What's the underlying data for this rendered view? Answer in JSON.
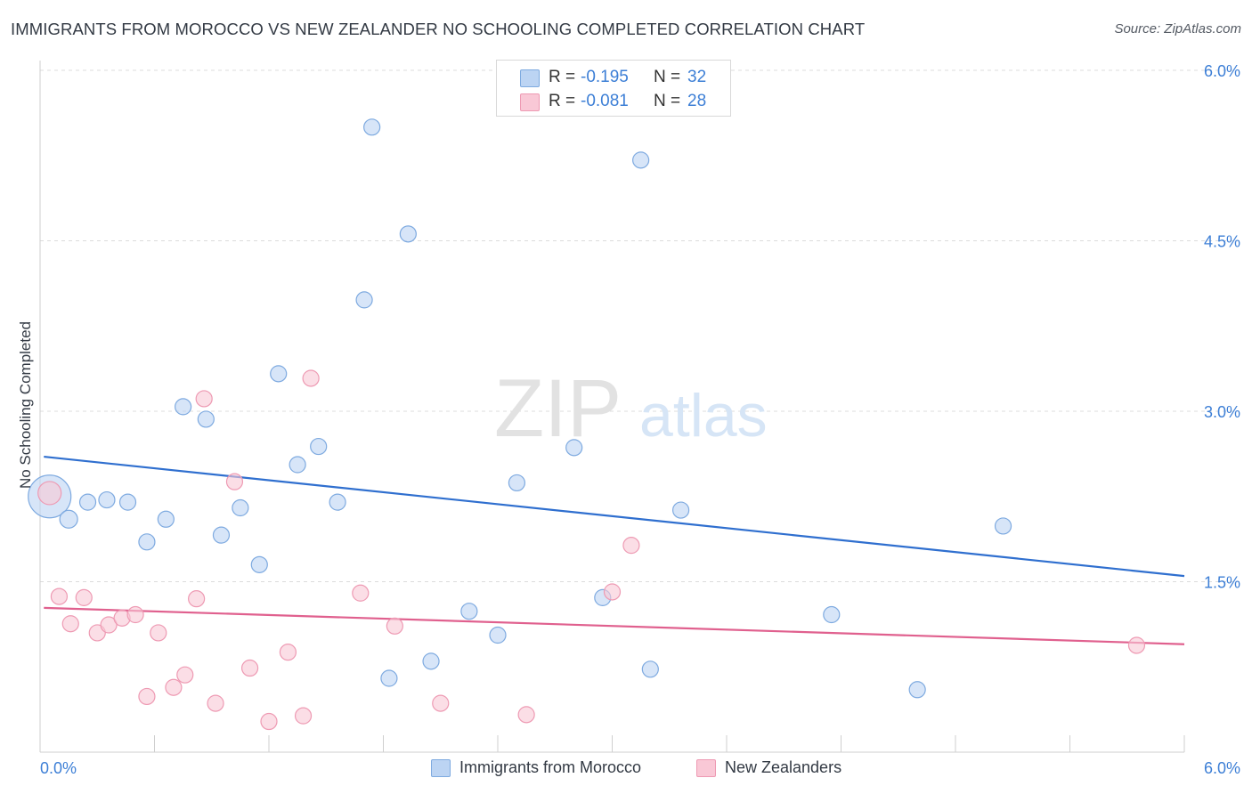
{
  "title": "IMMIGRANTS FROM MOROCCO VS NEW ZEALANDER NO SCHOOLING COMPLETED CORRELATION CHART",
  "source": "Source: ZipAtlas.com",
  "watermark": {
    "zip": "ZIP",
    "atlas": "atlas"
  },
  "legend_top": {
    "rows": [
      {
        "r_label": "R =",
        "r_value": "-0.195",
        "n_label": "N =",
        "n_value": "32"
      },
      {
        "r_label": "R =",
        "r_value": "-0.081",
        "n_label": "N =",
        "n_value": "28"
      }
    ]
  },
  "legend_bottom": {
    "items": [
      {
        "label": "Immigrants from Morocco"
      },
      {
        "label": "New Zealanders"
      }
    ]
  },
  "colors": {
    "blue_fill": "#bcd4f3",
    "blue_stroke": "#7eaae0",
    "blue_line": "#2f6fcf",
    "pink_fill": "#f9c8d6",
    "pink_stroke": "#ee9ab3",
    "pink_line": "#e0608e",
    "axis_label": "#3d7fd6",
    "grid": "#dcdcdc"
  },
  "chart_data": {
    "type": "scatter",
    "xlabel": "",
    "ylabel": "No Schooling Completed",
    "xlim": [
      0,
      6.0
    ],
    "ylim": [
      0,
      6.0
    ],
    "x_tick_labels": [
      "0.0%",
      "6.0%"
    ],
    "y_tick_values": [
      1.5,
      3.0,
      4.5,
      6.0
    ],
    "y_tick_labels": [
      "1.5%",
      "3.0%",
      "4.5%",
      "6.0%"
    ],
    "grid": true,
    "series": [
      {
        "name": "Immigrants from Morocco",
        "color": "#bcd4f3",
        "points": [
          [
            0.05,
            2.25,
            24
          ],
          [
            0.15,
            2.05,
            10
          ],
          [
            0.25,
            2.2,
            9
          ],
          [
            0.35,
            2.22,
            9
          ],
          [
            0.46,
            2.2,
            9
          ],
          [
            0.56,
            1.85,
            9
          ],
          [
            0.66,
            2.05,
            9
          ],
          [
            0.75,
            3.04,
            9
          ],
          [
            0.87,
            2.93,
            9
          ],
          [
            0.95,
            1.91,
            9
          ],
          [
            1.05,
            2.15,
            9
          ],
          [
            1.15,
            1.65,
            9
          ],
          [
            1.25,
            3.33,
            9
          ],
          [
            1.35,
            2.53,
            9
          ],
          [
            1.46,
            2.69,
            9
          ],
          [
            1.56,
            2.2,
            9
          ],
          [
            1.7,
            3.98,
            9
          ],
          [
            1.74,
            5.5,
            9
          ],
          [
            1.83,
            0.65,
            9
          ],
          [
            1.93,
            4.56,
            9
          ],
          [
            2.05,
            0.8,
            9
          ],
          [
            2.25,
            1.24,
            9
          ],
          [
            2.4,
            1.03,
            9
          ],
          [
            2.5,
            2.37,
            9
          ],
          [
            2.8,
            2.68,
            9
          ],
          [
            2.95,
            1.36,
            9
          ],
          [
            3.2,
            0.73,
            9
          ],
          [
            3.15,
            5.21,
            9
          ],
          [
            3.36,
            2.13,
            9
          ],
          [
            4.15,
            1.21,
            9
          ],
          [
            4.6,
            0.55,
            9
          ],
          [
            5.05,
            1.99,
            9
          ]
        ],
        "trend": {
          "x0": 0.02,
          "y0": 2.6,
          "x1": 6.0,
          "y1": 1.55
        }
      },
      {
        "name": "New Zealanders",
        "color": "#f9c8d6",
        "points": [
          [
            0.05,
            2.28,
            13
          ],
          [
            0.1,
            1.37,
            9
          ],
          [
            0.16,
            1.13,
            9
          ],
          [
            0.23,
            1.36,
            9
          ],
          [
            0.3,
            1.05,
            9
          ],
          [
            0.36,
            1.12,
            9
          ],
          [
            0.43,
            1.18,
            9
          ],
          [
            0.5,
            1.21,
            9
          ],
          [
            0.56,
            0.49,
            9
          ],
          [
            0.62,
            1.05,
            9
          ],
          [
            0.7,
            0.57,
            9
          ],
          [
            0.76,
            0.68,
            9
          ],
          [
            0.82,
            1.35,
            9
          ],
          [
            0.92,
            0.43,
            9
          ],
          [
            0.86,
            3.11,
            9
          ],
          [
            1.02,
            2.38,
            9
          ],
          [
            1.1,
            0.74,
            9
          ],
          [
            1.2,
            0.27,
            9
          ],
          [
            1.3,
            0.88,
            9
          ],
          [
            1.38,
            0.32,
            9
          ],
          [
            1.42,
            3.29,
            9
          ],
          [
            1.68,
            1.4,
            9
          ],
          [
            1.86,
            1.11,
            9
          ],
          [
            2.1,
            0.43,
            9
          ],
          [
            2.55,
            0.33,
            9
          ],
          [
            3.0,
            1.41,
            9
          ],
          [
            3.1,
            1.82,
            9
          ],
          [
            5.75,
            0.94,
            9
          ]
        ],
        "trend": {
          "x0": 0.02,
          "y0": 1.27,
          "x1": 6.0,
          "y1": 0.95
        }
      }
    ]
  }
}
